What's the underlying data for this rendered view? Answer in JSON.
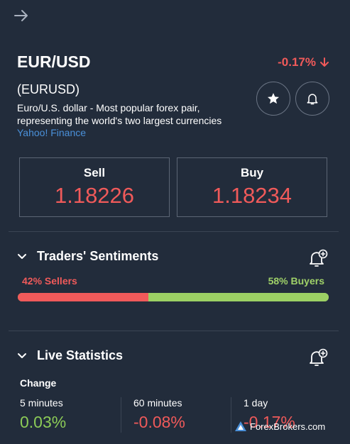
{
  "header": {
    "back_icon": "arrow-right-icon"
  },
  "instrument": {
    "symbol": "EUR/USD",
    "change": "-0.17%",
    "code": "(EURUSD)",
    "description": "Euro/U.S. dollar - Most popular forex pair, representing the world's two largest currencies",
    "source": "Yahoo! Finance"
  },
  "prices": {
    "sell_label": "Sell",
    "sell_value": "1.18226",
    "buy_label": "Buy",
    "buy_value": "1.18234"
  },
  "sentiments": {
    "title": "Traders' Sentiments",
    "sellers_label": "42% Sellers",
    "buyers_label": "58% Buyers",
    "sellers_percent": 42,
    "buyers_percent": 58
  },
  "live_statistics": {
    "title": "Live Statistics",
    "change_label": "Change",
    "stats": [
      {
        "label": "5 minutes",
        "value": "0.03%"
      },
      {
        "label": "60 minutes",
        "value": "-0.08%"
      },
      {
        "label": "1 day",
        "value": "-0.17%"
      }
    ]
  },
  "watermark": {
    "text": "ForexBrokers.com"
  },
  "colors": {
    "background": "#222c3b",
    "negative": "#f05a5a",
    "positive": "#8ccb57",
    "link": "#4a90d9"
  }
}
